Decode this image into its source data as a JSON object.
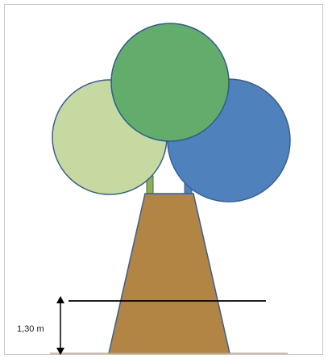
{
  "diagram": {
    "measurement_label": "1,30 m",
    "colors": {
      "frame_border": "#c8c8c8",
      "left_crown_fill": "#c5d9a0",
      "center_crown_fill": "#62ad6c",
      "right_crown_fill": "#4f81bd",
      "crown_outline": "#3a5f8f",
      "trunk_fill": "#b38545",
      "trunk_outline": "#3a5f8f",
      "stem_left": "#8fb04a",
      "stem_right": "#4f81bd",
      "ground_line": "#c0a58a",
      "measure_line": "#000000"
    }
  }
}
